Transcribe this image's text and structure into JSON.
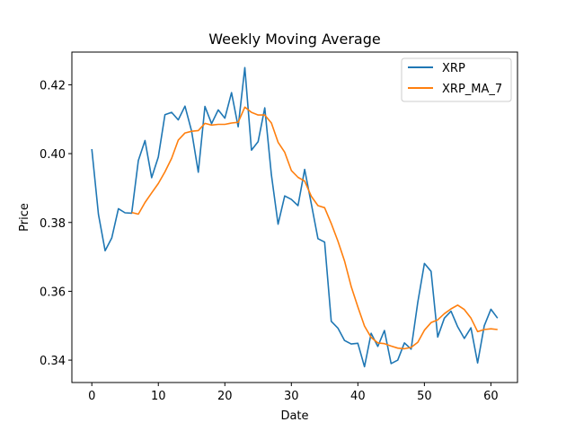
{
  "chart_data": {
    "type": "line",
    "title": "Weekly Moving Average",
    "xlabel": "Date",
    "ylabel": "Price",
    "xlim": [
      -3,
      64
    ],
    "ylim": [
      0.3335,
      0.4295
    ],
    "x_ticks": [
      0,
      10,
      20,
      30,
      40,
      50,
      60
    ],
    "y_ticks": [
      0.34,
      0.36,
      0.38,
      0.4,
      0.42
    ],
    "y_tick_labels": [
      "0.34",
      "0.36",
      "0.38",
      "0.40",
      "0.42"
    ],
    "grid": false,
    "legend_position": "top-right",
    "series": [
      {
        "name": "XRP",
        "color": "#1f77b4",
        "x": [
          0,
          1,
          2,
          3,
          4,
          5,
          6,
          7,
          8,
          9,
          10,
          11,
          12,
          13,
          14,
          15,
          16,
          17,
          18,
          19,
          20,
          21,
          22,
          23,
          24,
          25,
          26,
          27,
          28,
          29,
          30,
          31,
          32,
          33,
          34,
          35,
          36,
          37,
          38,
          39,
          40,
          41,
          42,
          43,
          44,
          45,
          46,
          47,
          48,
          49,
          50,
          51,
          52,
          53,
          54,
          55,
          56,
          57,
          58,
          59,
          60,
          61
        ],
        "values": [
          0.4013,
          0.3823,
          0.3718,
          0.3755,
          0.384,
          0.3828,
          0.3827,
          0.398,
          0.4038,
          0.393,
          0.399,
          0.4113,
          0.412,
          0.4098,
          0.4138,
          0.4065,
          0.3946,
          0.4137,
          0.4087,
          0.4127,
          0.4103,
          0.4177,
          0.4078,
          0.425,
          0.401,
          0.4035,
          0.4133,
          0.3938,
          0.3795,
          0.3877,
          0.3867,
          0.3849,
          0.3954,
          0.3854,
          0.3753,
          0.3743,
          0.3513,
          0.3493,
          0.3457,
          0.3447,
          0.3449,
          0.3381,
          0.3478,
          0.344,
          0.3486,
          0.339,
          0.34,
          0.345,
          0.3432,
          0.3568,
          0.3681,
          0.3658,
          0.3467,
          0.3522,
          0.3542,
          0.3497,
          0.3463,
          0.3494,
          0.3392,
          0.35,
          0.3548,
          0.3522
        ]
      },
      {
        "name": "XRP_MA_7",
        "color": "#ff7f0e",
        "x": [
          6,
          7,
          8,
          9,
          10,
          11,
          12,
          13,
          14,
          15,
          16,
          17,
          18,
          19,
          20,
          21,
          22,
          23,
          24,
          25,
          26,
          27,
          28,
          29,
          30,
          31,
          32,
          33,
          34,
          35,
          36,
          37,
          38,
          39,
          40,
          41,
          42,
          43,
          44,
          45,
          46,
          47,
          48,
          49,
          50,
          51,
          52,
          53,
          54,
          55,
          56,
          57,
          58,
          59,
          60,
          61
        ],
        "values": [
          0.3829,
          0.3824,
          0.3858,
          0.3886,
          0.3913,
          0.3947,
          0.3986,
          0.4039,
          0.406,
          0.4065,
          0.4067,
          0.4088,
          0.4083,
          0.4085,
          0.4085,
          0.4089,
          0.4091,
          0.4135,
          0.412,
          0.4112,
          0.4112,
          0.4089,
          0.4033,
          0.4004,
          0.3951,
          0.3931,
          0.392,
          0.3876,
          0.3849,
          0.3843,
          0.3797,
          0.3746,
          0.3688,
          0.3614,
          0.3555,
          0.3499,
          0.3466,
          0.345,
          0.3448,
          0.3441,
          0.3435,
          0.3433,
          0.3437,
          0.3452,
          0.3487,
          0.3509,
          0.3517,
          0.3535,
          0.3549,
          0.356,
          0.3547,
          0.3522,
          0.3483,
          0.3489,
          0.3491,
          0.3489
        ]
      }
    ]
  }
}
